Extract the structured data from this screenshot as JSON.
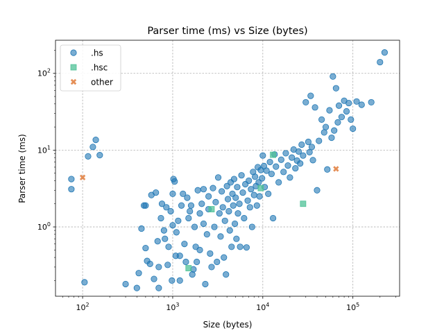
{
  "chart_data": {
    "type": "scatter",
    "title": "Parser time (ms) vs Size (bytes)",
    "xlabel": "Size (bytes)",
    "ylabel": "Parser time (ms)",
    "xscale": "log",
    "yscale": "log",
    "xlim": [
      50,
      330000
    ],
    "ylim": [
      0.125,
      270
    ],
    "grid": true,
    "legend_position": "upper-left",
    "x_ticks": [
      {
        "value": 100,
        "base": "10",
        "exp": "2"
      },
      {
        "value": 1000,
        "base": "10",
        "exp": "3"
      },
      {
        "value": 10000,
        "base": "10",
        "exp": "4"
      },
      {
        "value": 100000,
        "base": "10",
        "exp": "5"
      }
    ],
    "y_ticks": [
      {
        "value": 1,
        "base": "10",
        "exp": "0"
      },
      {
        "value": 10,
        "base": "10",
        "exp": "1"
      },
      {
        "value": 100,
        "base": "10",
        "exp": "2"
      }
    ],
    "series": [
      {
        "name": ".hs",
        "marker": "circle",
        "color": "#1f77b4",
        "points": [
          [
            75,
            4.2
          ],
          [
            75,
            3.1
          ],
          [
            105,
            0.19
          ],
          [
            115,
            8.3
          ],
          [
            130,
            11
          ],
          [
            140,
            13.6
          ],
          [
            155,
            8.6
          ],
          [
            300,
            0.18
          ],
          [
            400,
            0.16
          ],
          [
            420,
            0.25
          ],
          [
            450,
            0.95
          ],
          [
            480,
            1.9
          ],
          [
            500,
            0.53
          ],
          [
            500,
            1.9
          ],
          [
            520,
            0.36
          ],
          [
            560,
            0.33
          ],
          [
            580,
            2.6
          ],
          [
            620,
            0.21
          ],
          [
            650,
            2.8
          ],
          [
            680,
            0.65
          ],
          [
            700,
            0.16
          ],
          [
            700,
            0.3
          ],
          [
            740,
            1.3
          ],
          [
            760,
            2.0
          ],
          [
            800,
            0.9
          ],
          [
            820,
            0.7
          ],
          [
            850,
            1.8
          ],
          [
            880,
            0.32
          ],
          [
            900,
            0.55
          ],
          [
            950,
            1.6
          ],
          [
            980,
            0.2
          ],
          [
            1000,
            2.7
          ],
          [
            1000,
            1.05
          ],
          [
            1020,
            4.2
          ],
          [
            1050,
            3.9
          ],
          [
            1080,
            0.42
          ],
          [
            1100,
            0.85
          ],
          [
            1150,
            1.2
          ],
          [
            1200,
            0.2
          ],
          [
            1200,
            0.42
          ],
          [
            1250,
            1.9
          ],
          [
            1300,
            2.7
          ],
          [
            1350,
            0.6
          ],
          [
            1400,
            0.35
          ],
          [
            1450,
            2.4
          ],
          [
            1500,
            1.3
          ],
          [
            1550,
            1.6
          ],
          [
            1600,
            1.9
          ],
          [
            1650,
            0.24
          ],
          [
            1700,
            0.28
          ],
          [
            1750,
            1.0
          ],
          [
            1800,
            0.55
          ],
          [
            1850,
            0.35
          ],
          [
            1900,
            3.0
          ],
          [
            2000,
            1.5
          ],
          [
            2000,
            0.5
          ],
          [
            2100,
            2.0
          ],
          [
            2200,
            3.1
          ],
          [
            2200,
            1.1
          ],
          [
            2300,
            0.18
          ],
          [
            2400,
            0.8
          ],
          [
            2500,
            2.5
          ],
          [
            2500,
            1.7
          ],
          [
            2600,
            0.45
          ],
          [
            2700,
            0.3
          ],
          [
            2800,
            3.2
          ],
          [
            2900,
            1.0
          ],
          [
            3000,
            2.1
          ],
          [
            3100,
            0.35
          ],
          [
            3200,
            4.4
          ],
          [
            3300,
            1.5
          ],
          [
            3400,
            0.75
          ],
          [
            3500,
            2.9
          ],
          [
            3600,
            1.8
          ],
          [
            3700,
            0.4
          ],
          [
            3800,
            1.2
          ],
          [
            3900,
            0.24
          ],
          [
            4000,
            3.4
          ],
          [
            4100,
            2.3
          ],
          [
            4200,
            1.6
          ],
          [
            4300,
            0.9
          ],
          [
            4400,
            3.8
          ],
          [
            4500,
            0.55
          ],
          [
            4600,
            2.7
          ],
          [
            4700,
            1.9
          ],
          [
            4800,
            4.2
          ],
          [
            4900,
            1.1
          ],
          [
            5000,
            2.4
          ],
          [
            5100,
            0.7
          ],
          [
            5200,
            3.3
          ],
          [
            5300,
            1.5
          ],
          [
            5500,
            2.0
          ],
          [
            5600,
            0.55
          ],
          [
            5800,
            4.7
          ],
          [
            6000,
            2.8
          ],
          [
            6200,
            1.3
          ],
          [
            6400,
            3.6
          ],
          [
            6600,
            0.54
          ],
          [
            6800,
            2.2
          ],
          [
            7000,
            4.0
          ],
          [
            7200,
            1.8
          ],
          [
            7400,
            3.1
          ],
          [
            7600,
            1.0
          ],
          [
            7800,
            5.2
          ],
          [
            8000,
            2.6
          ],
          [
            8200,
            4.5
          ],
          [
            8400,
            3.4
          ],
          [
            8600,
            1.9
          ],
          [
            8800,
            6.0
          ],
          [
            9000,
            3.8
          ],
          [
            9200,
            2.5
          ],
          [
            9500,
            5.5
          ],
          [
            9800,
            4.3
          ],
          [
            10000,
            8.5
          ],
          [
            10300,
            6.2
          ],
          [
            10500,
            3.3
          ],
          [
            11000,
            5.4
          ],
          [
            11500,
            2.7
          ],
          [
            12000,
            7.0
          ],
          [
            12500,
            4.9
          ],
          [
            13000,
            1.3
          ],
          [
            13500,
            8.8
          ],
          [
            14000,
            6.1
          ],
          [
            15000,
            3.8
          ],
          [
            16000,
            7.5
          ],
          [
            17000,
            5.2
          ],
          [
            18000,
            9.1
          ],
          [
            19000,
            6.3
          ],
          [
            20000,
            4.4
          ],
          [
            21000,
            8.0
          ],
          [
            22000,
            10.2
          ],
          [
            23000,
            5.8
          ],
          [
            24000,
            7.3
          ],
          [
            25000,
            9.6
          ],
          [
            26000,
            6.7
          ],
          [
            27000,
            11.8
          ],
          [
            28000,
            8.5
          ],
          [
            30000,
            42
          ],
          [
            32000,
            12.8
          ],
          [
            33000,
            9.4
          ],
          [
            34000,
            51
          ],
          [
            35000,
            11.0
          ],
          [
            36000,
            7.4
          ],
          [
            38000,
            36
          ],
          [
            40000,
            3.0
          ],
          [
            42000,
            13.2
          ],
          [
            45000,
            25
          ],
          [
            48000,
            17
          ],
          [
            50000,
            20
          ],
          [
            52000,
            5.6
          ],
          [
            55000,
            33
          ],
          [
            58000,
            14.5
          ],
          [
            60000,
            91
          ],
          [
            62000,
            18
          ],
          [
            65000,
            64
          ],
          [
            68000,
            23
          ],
          [
            70000,
            38
          ],
          [
            75000,
            27
          ],
          [
            80000,
            44
          ],
          [
            85000,
            32
          ],
          [
            90000,
            41
          ],
          [
            95000,
            25
          ],
          [
            100000,
            19
          ],
          [
            110000,
            43
          ],
          [
            125000,
            39
          ],
          [
            160000,
            42
          ],
          [
            200000,
            140
          ],
          [
            225000,
            187
          ]
        ]
      },
      {
        "name": ".hsc",
        "marker": "square",
        "color": "#4fc197",
        "points": [
          [
            1500,
            0.29
          ],
          [
            2700,
            1.7
          ],
          [
            9500,
            3.2
          ],
          [
            13000,
            8.7
          ],
          [
            28000,
            2.0
          ]
        ]
      },
      {
        "name": "other",
        "marker": "x",
        "color": "#e07b39",
        "points": [
          [
            100,
            4.4
          ],
          [
            65000,
            5.7
          ]
        ]
      }
    ]
  }
}
